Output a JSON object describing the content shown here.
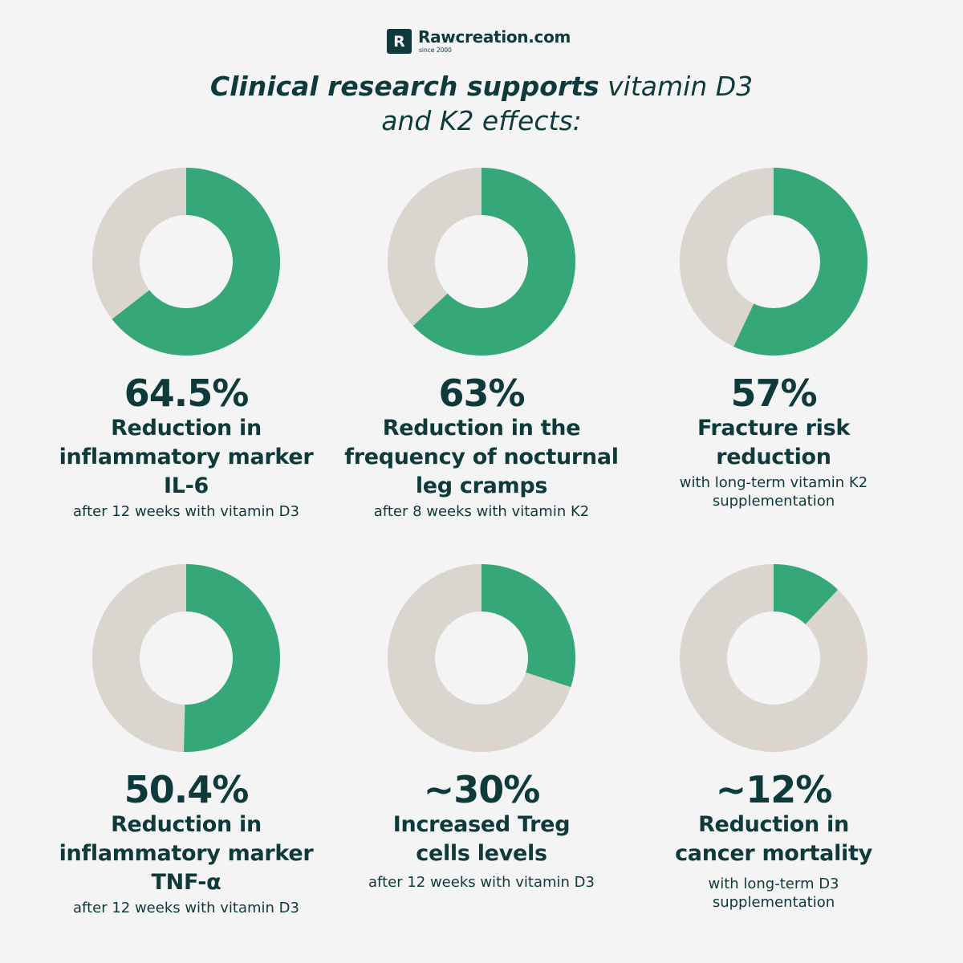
{
  "logo": {
    "mark": "R",
    "name": "Rawcreation.com",
    "since": "since 2000"
  },
  "headline": {
    "strong": "Clinical research supports",
    "light_line1": "vitamin D3",
    "light_line2": "and K2 effects:"
  },
  "colors": {
    "fill": "#35a779",
    "track": "#dad5cf",
    "text": "#0e3a3c",
    "background": "#f4f4f4"
  },
  "chart_data": [
    {
      "type": "pie",
      "value": 64.5,
      "label": "64.5%",
      "title": "Reduction in inflammatory marker IL-6",
      "subtitle": "after 12 weeks with vitamin D3"
    },
    {
      "type": "pie",
      "value": 63,
      "label": "63%",
      "title": "Reduction in the frequency of nocturnal leg cramps",
      "subtitle": "after 8 weeks with vitamin K2"
    },
    {
      "type": "pie",
      "value": 57,
      "label": "57%",
      "title": "Fracture risk reduction",
      "subtitle": "with long-term vitamin K2 supplementation"
    },
    {
      "type": "pie",
      "value": 50.4,
      "label": "50.4%",
      "title": "Reduction in inflammatory marker TNF-α",
      "subtitle": "after 12 weeks with vitamin D3"
    },
    {
      "type": "pie",
      "value": 30,
      "label": "~30%",
      "title": "Increased Treg cells levels",
      "subtitle": "after 12 weeks with vitamin D3"
    },
    {
      "type": "pie",
      "value": 12,
      "label": "~12%",
      "title": "Reduction in cancer mortality",
      "subtitle": "with long-term D3 supplementation"
    }
  ]
}
